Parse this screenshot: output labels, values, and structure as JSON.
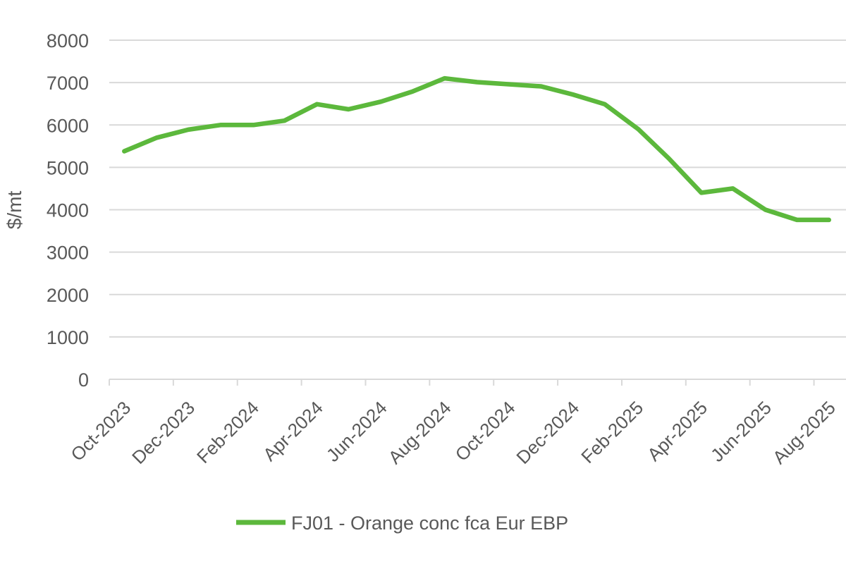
{
  "chart_data": {
    "type": "line",
    "title": "",
    "xlabel": "",
    "ylabel": "$/mt",
    "ylim": [
      0,
      8000
    ],
    "yticks": [
      0,
      1000,
      2000,
      3000,
      4000,
      5000,
      6000,
      7000,
      8000
    ],
    "grid": true,
    "legend_position": "bottom",
    "x_tick_labels": [
      "Oct-2023",
      "Dec-2023",
      "Feb-2024",
      "Apr-2024",
      "Jun-2024",
      "Aug-2024",
      "Oct-2024",
      "Dec-2024",
      "Feb-2025",
      "Apr-2025",
      "Jun-2025",
      "Aug-2025"
    ],
    "x": [
      "2023-10-15",
      "2023-11-15",
      "2023-12-15",
      "2024-01-15",
      "2024-02-15",
      "2024-03-15",
      "2024-04-15",
      "2024-05-15",
      "2024-06-15",
      "2024-07-15",
      "2024-08-15",
      "2024-09-15",
      "2024-10-15",
      "2024-11-15",
      "2024-12-15",
      "2025-01-15",
      "2025-02-15",
      "2025-03-15",
      "2025-04-15",
      "2025-05-15",
      "2025-06-15",
      "2025-07-15",
      "2025-08-15"
    ],
    "series": [
      {
        "name": "FJ01 - Orange conc fca Eur EBP",
        "color": "#5cb83c",
        "values": [
          5380,
          5700,
          5890,
          6000,
          6000,
          6100,
          6490,
          6370,
          6550,
          6790,
          7100,
          7010,
          6960,
          6910,
          6720,
          6490,
          5900,
          5210,
          4400,
          4500,
          4000,
          3760,
          3760
        ]
      }
    ]
  }
}
